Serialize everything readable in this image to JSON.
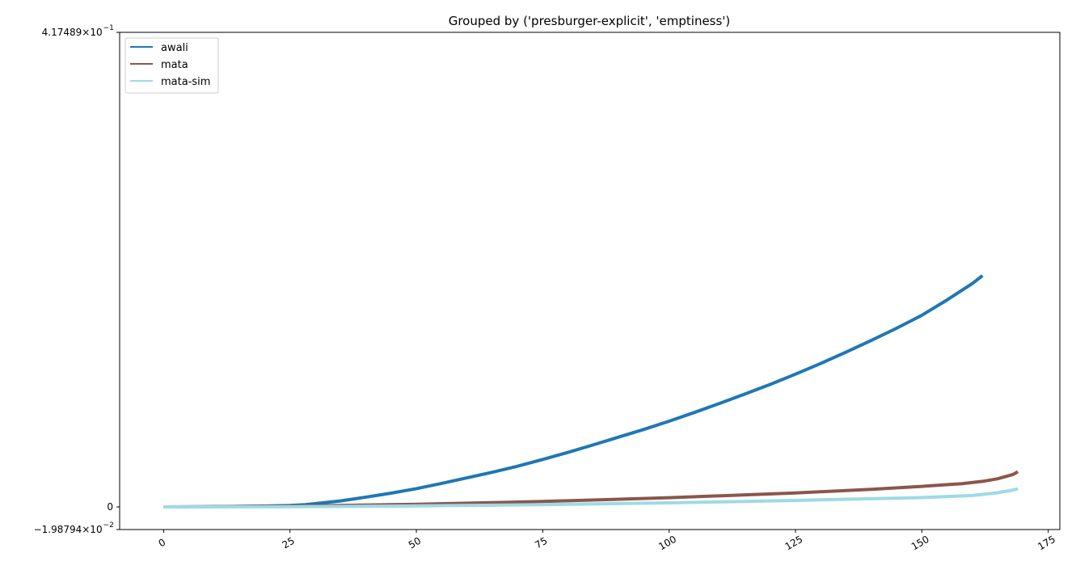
{
  "chart_data": {
    "type": "line",
    "title": "Grouped by ('presburger-explicit', 'emptiness')",
    "xlabel": "",
    "ylabel": "",
    "xlim": [
      -8.7,
      177.3
    ],
    "ylim": [
      -0.0198794,
      0.417489
    ],
    "x_ticks": [
      {
        "value": 0,
        "label": "0"
      },
      {
        "value": 25,
        "label": "25"
      },
      {
        "value": 50,
        "label": "50"
      },
      {
        "value": 75,
        "label": "75"
      },
      {
        "value": 100,
        "label": "100"
      },
      {
        "value": 125,
        "label": "125"
      },
      {
        "value": 150,
        "label": "150"
      },
      {
        "value": 175,
        "label": "175"
      }
    ],
    "y_ticks": [
      {
        "value": 0.417489,
        "base": "4.17489",
        "exp": "−1"
      },
      {
        "value": 0,
        "base": "0",
        "exp": ""
      },
      {
        "value": -0.0198794,
        "base": "−1.98794",
        "exp": "−2"
      }
    ],
    "legend_position": "upper-left",
    "grid": false,
    "series": [
      {
        "name": "awali",
        "color": "#1f77b4",
        "x": [
          0,
          10,
          20,
          25,
          28,
          35,
          40,
          45,
          50,
          55,
          60,
          65,
          70,
          75,
          80,
          85,
          90,
          95,
          100,
          105,
          110,
          115,
          120,
          125,
          130,
          135,
          140,
          145,
          150,
          155,
          160,
          162
        ],
        "y": [
          0,
          0.0002,
          0.0008,
          0.0013,
          0.002,
          0.0053,
          0.0086,
          0.0121,
          0.0161,
          0.0207,
          0.0256,
          0.0305,
          0.0358,
          0.0418,
          0.048,
          0.0546,
          0.0614,
          0.0682,
          0.0754,
          0.0831,
          0.0911,
          0.0993,
          0.1078,
          0.1168,
          0.1262,
          0.1362,
          0.1465,
          0.1572,
          0.1686,
          0.1821,
          0.1965,
          0.2035
        ]
      },
      {
        "name": "mata",
        "color": "#8c564b",
        "x": [
          0,
          25,
          50,
          75,
          100,
          125,
          140,
          150,
          158,
          162,
          165,
          168,
          169
        ],
        "y": [
          0,
          0.0007,
          0.0023,
          0.0048,
          0.0081,
          0.0123,
          0.0155,
          0.0181,
          0.0205,
          0.0225,
          0.0248,
          0.0285,
          0.031
        ]
      },
      {
        "name": "mata-sim",
        "color": "#9edae5",
        "x": [
          0,
          25,
          50,
          75,
          100,
          125,
          150,
          160,
          165,
          168,
          169
        ],
        "y": [
          0,
          0.0002,
          0.0009,
          0.002,
          0.0036,
          0.0057,
          0.0082,
          0.0101,
          0.0125,
          0.0148,
          0.016
        ]
      }
    ]
  }
}
